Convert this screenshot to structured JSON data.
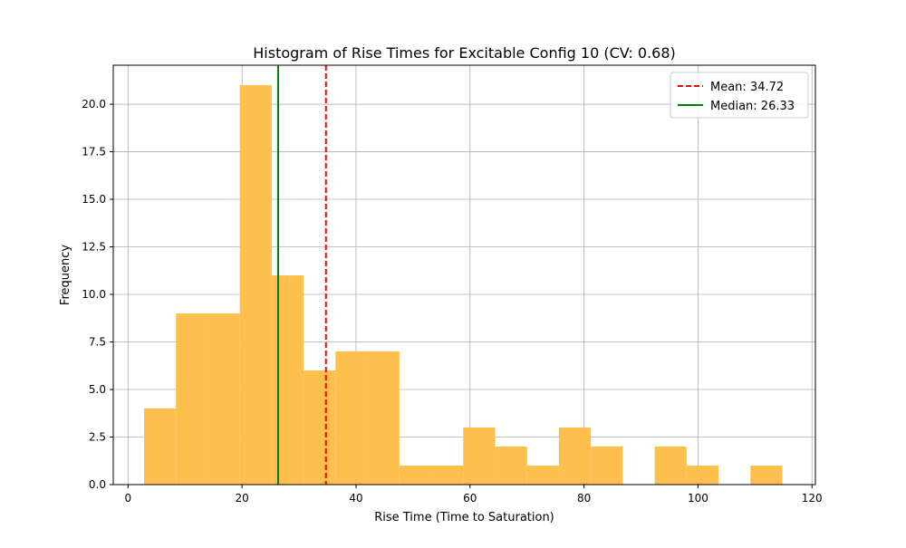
{
  "chart_data": {
    "type": "bar",
    "title": "Histogram of Rise Times for Excitable Config 10 (CV: 0.68)",
    "xlabel": "Rise Time (Time to Saturation)",
    "ylabel": "Frequency",
    "xlim": [
      -2.6,
      120.6
    ],
    "ylim": [
      0,
      22.05
    ],
    "xticks": [
      0,
      20,
      40,
      60,
      80,
      100,
      120
    ],
    "yticks": [
      0.0,
      2.5,
      5.0,
      7.5,
      10.0,
      12.5,
      15.0,
      17.5,
      20.0
    ],
    "x_tick_labels": [
      "0",
      "20",
      "40",
      "60",
      "80",
      "100",
      "120"
    ],
    "y_tick_labels": [
      "0.0",
      "2.5",
      "5.0",
      "7.5",
      "10.0",
      "12.5",
      "15.0",
      "17.5",
      "20.0"
    ],
    "bins": {
      "edges": [
        2.8,
        8.4,
        14.0,
        19.6,
        25.2,
        30.8,
        36.4,
        42.0,
        47.6,
        53.2,
        58.8,
        64.4,
        70.0,
        75.6,
        81.2,
        86.8,
        92.4,
        98.0,
        103.6,
        109.2,
        114.8
      ],
      "counts": [
        4,
        9,
        9,
        21,
        11,
        6,
        7,
        7,
        1,
        1,
        3,
        2,
        1,
        3,
        2,
        0,
        2,
        1,
        0,
        1
      ]
    },
    "bar_color": "#ffbf4d",
    "grid": true,
    "reference_lines": [
      {
        "name": "Mean: 34.72",
        "value": 34.72,
        "color": "#ff0000",
        "style": "dashed"
      },
      {
        "name": "Median: 26.33",
        "value": 26.33,
        "color": "#008000",
        "style": "solid"
      }
    ],
    "legend": {
      "position": "top-right"
    }
  }
}
